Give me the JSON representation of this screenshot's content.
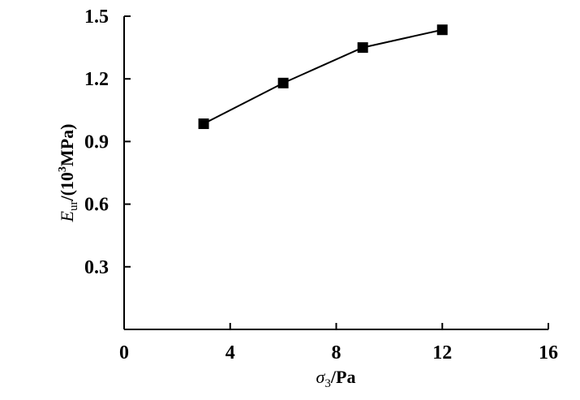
{
  "chart_data": {
    "type": "line",
    "x": [
      3,
      6,
      9,
      12
    ],
    "series": [
      {
        "values": [
          0.985,
          1.18,
          1.35,
          1.435
        ],
        "marker": "square",
        "color": "#000000"
      }
    ],
    "xlim": [
      0,
      16
    ],
    "ylim": [
      0,
      1.5
    ],
    "x_ticks": [
      "0",
      "4",
      "8",
      "12",
      "16"
    ],
    "y_ticks": [
      "0.3",
      "0.6",
      "0.9",
      "1.2",
      "1.5"
    ],
    "xlabel": {
      "symbol": "σ",
      "subscript": "3",
      "unit": "/Pa"
    },
    "ylabel": {
      "symbol": "E",
      "subscript": "ur",
      "unit_prefix": "/(10",
      "superscript": "3",
      "unit_suffix": "MPa)"
    },
    "grid": false,
    "legend": "none"
  }
}
